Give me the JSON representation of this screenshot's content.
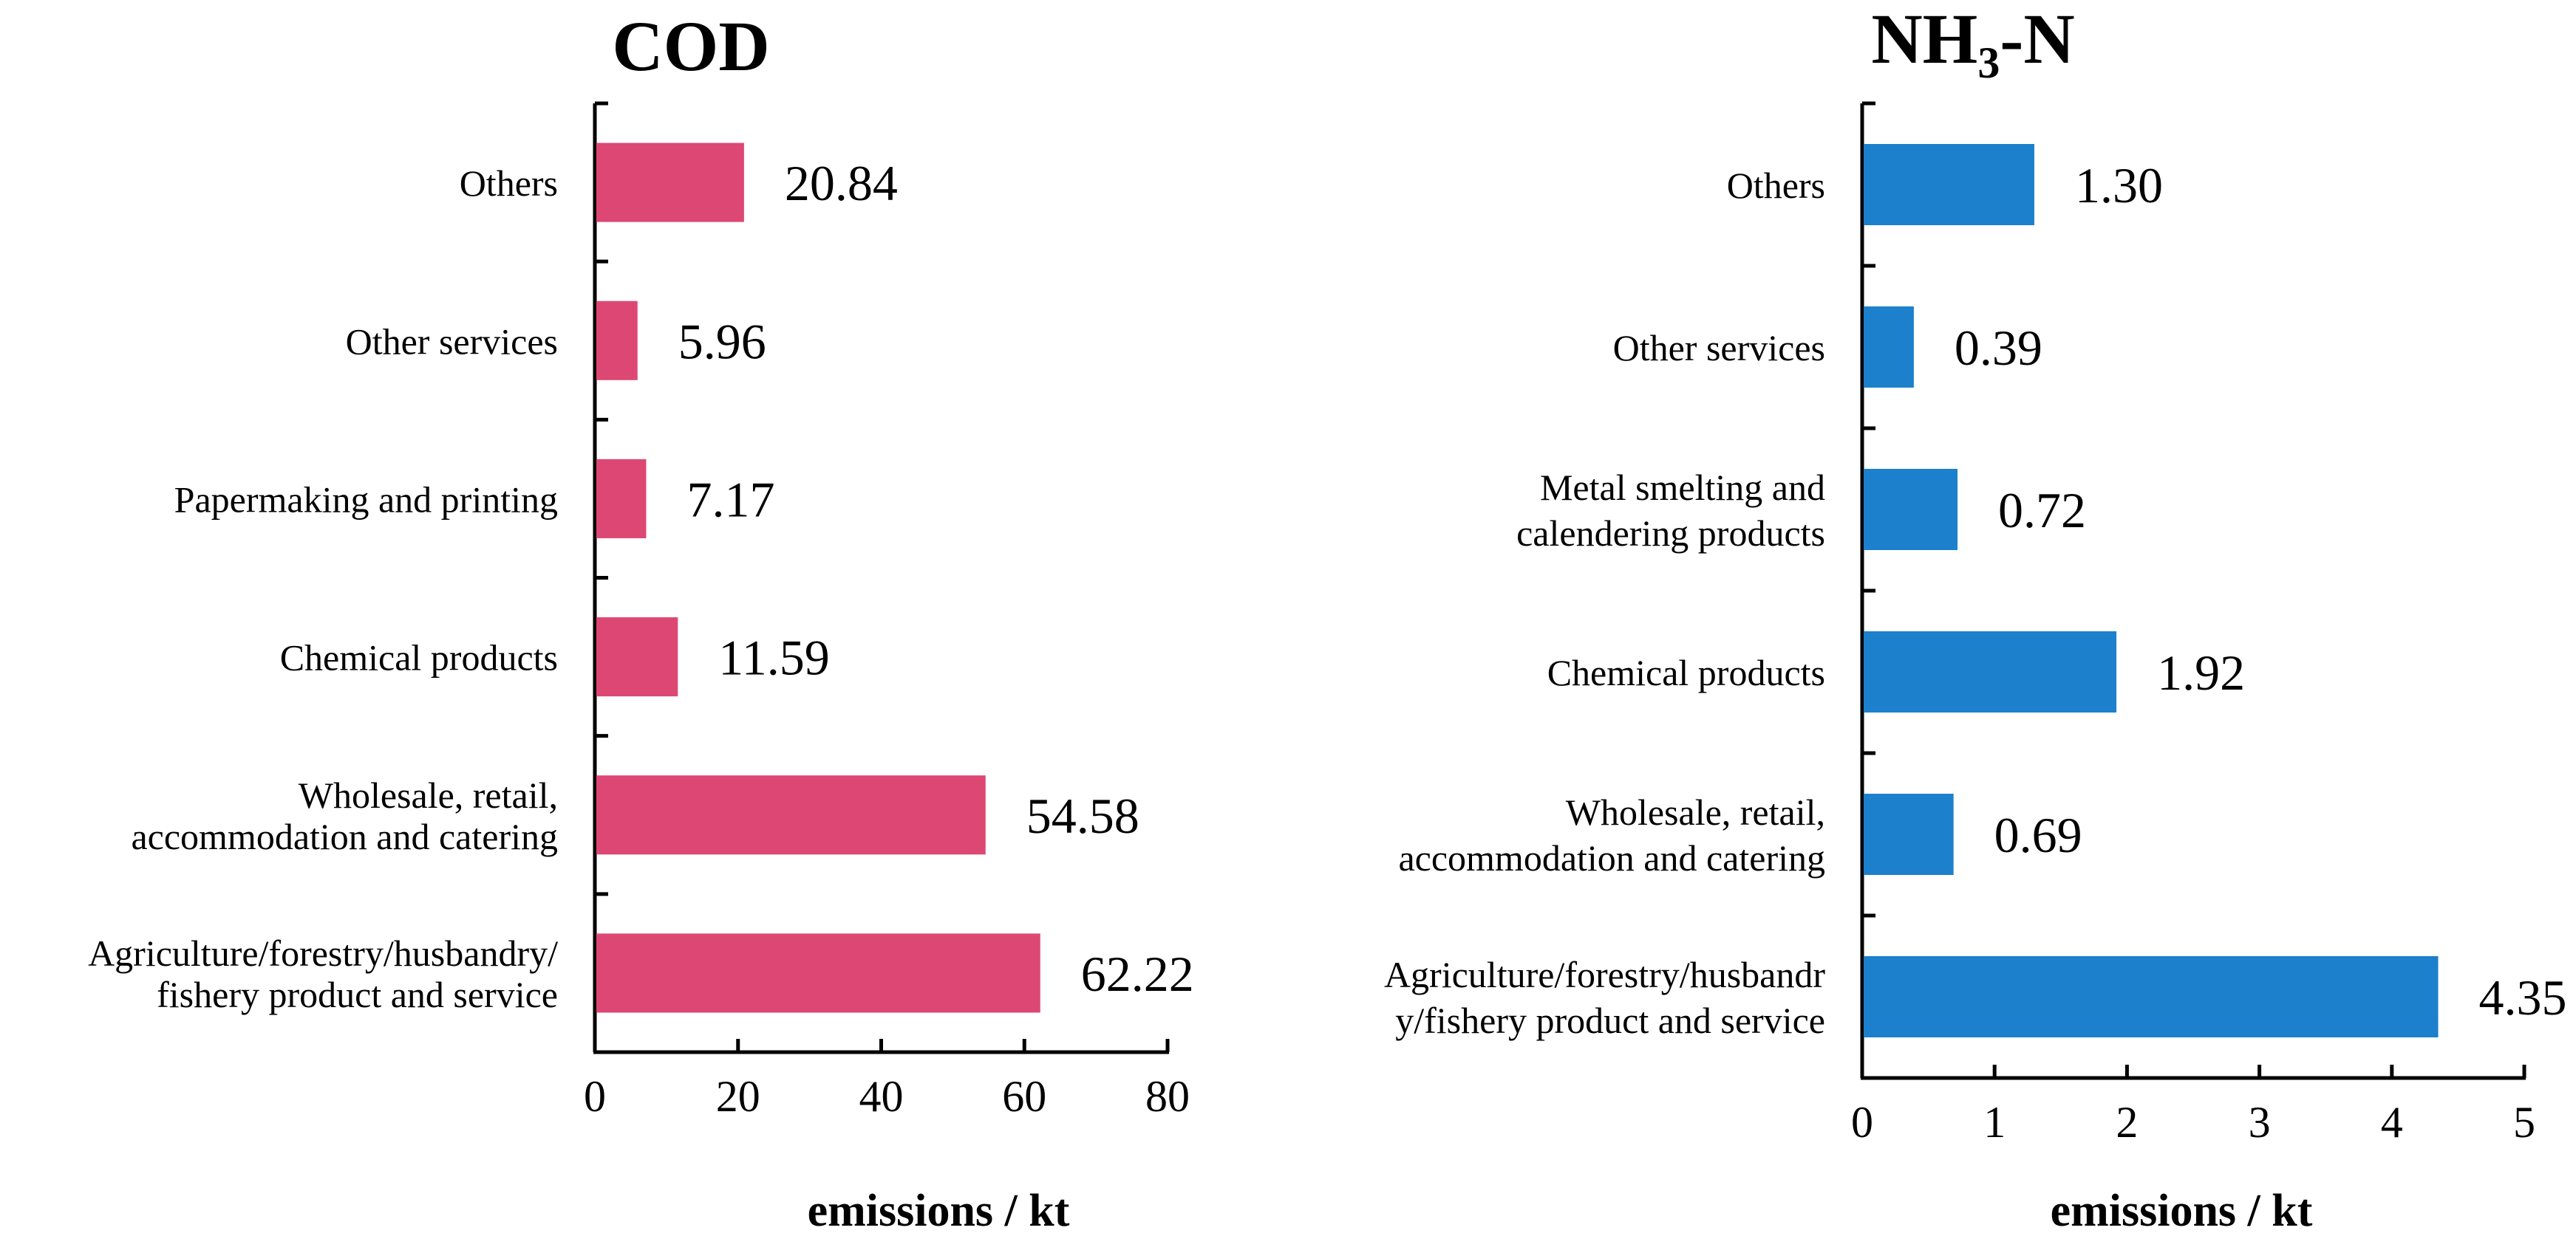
{
  "chart_data": [
    {
      "type": "bar",
      "orientation": "horizontal",
      "title": "COD",
      "xlabel": "emissions / kt",
      "ylabel": "",
      "xlim": [
        0,
        80
      ],
      "xticks": [
        "0",
        "20",
        "40",
        "60",
        "80"
      ],
      "categories": [
        "Others",
        "Other services",
        "Papermaking and printing",
        "Chemical products",
        "Wholesale, retail, accommodation and catering",
        "Agriculture/forestry/husbandry/ fishery product and service"
      ],
      "category_lines": [
        [
          "Others"
        ],
        [
          "Other services"
        ],
        [
          "Papermaking and printing"
        ],
        [
          "Chemical products"
        ],
        [
          "Wholesale, retail,",
          "accommodation and catering"
        ],
        [
          "Agriculture/forestry/husbandry/",
          "fishery product and service"
        ]
      ],
      "values": [
        20.84,
        5.96,
        7.17,
        11.59,
        54.58,
        62.22
      ],
      "value_labels": [
        "20.84",
        "5.96",
        "7.17",
        "11.59",
        "54.58",
        "62.22"
      ],
      "color": "#dd4774"
    },
    {
      "type": "bar",
      "orientation": "horizontal",
      "title": "NH3-N",
      "title_parts": {
        "base": "NH",
        "sub": "3",
        "tail": "-N"
      },
      "xlabel": "emissions / kt",
      "ylabel": "",
      "xlim": [
        0,
        5
      ],
      "xticks": [
        "0",
        "1",
        "2",
        "3",
        "4",
        "5"
      ],
      "categories": [
        "Others",
        "Other services",
        "Metal smelting and calendering products",
        "Chemical products",
        "Wholesale, retail, accommodation and catering",
        "Agriculture/forestry/husbandry/fishery product and service"
      ],
      "category_lines": [
        [
          "Others"
        ],
        [
          "Other services"
        ],
        [
          "Metal smelting and",
          "calendering products"
        ],
        [
          "Chemical products"
        ],
        [
          "Wholesale, retail,",
          "accommodation and catering"
        ],
        [
          "Agriculture/forestry/husbandr",
          "y/fishery product and service"
        ]
      ],
      "values": [
        1.3,
        0.39,
        0.72,
        1.92,
        0.69,
        4.35
      ],
      "value_labels": [
        "1.30",
        "0.39",
        "0.72",
        "1.92",
        "0.69",
        "4.35"
      ],
      "color": "#1c80cc"
    }
  ]
}
